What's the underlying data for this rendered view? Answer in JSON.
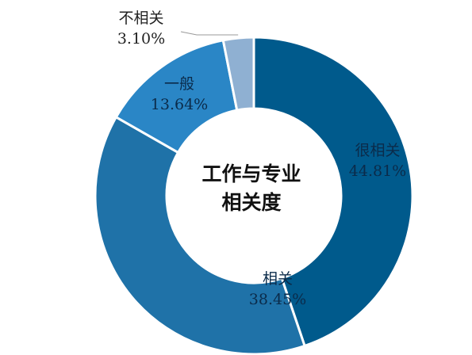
{
  "chart_data": {
    "type": "pie",
    "subtype": "donut",
    "title": "工作与专业相关度",
    "title_lines": [
      "工作与专业",
      "相关度"
    ],
    "categories": [
      "很相关",
      "相关",
      "一般",
      "不相关"
    ],
    "values": [
      44.81,
      38.45,
      13.64,
      3.1
    ],
    "labels": [
      "44.81%",
      "38.45%",
      "13.64%",
      "3.10%"
    ],
    "colors": [
      "#005a8c",
      "#1f72a8",
      "#2a86c6",
      "#8fb0d2"
    ]
  }
}
